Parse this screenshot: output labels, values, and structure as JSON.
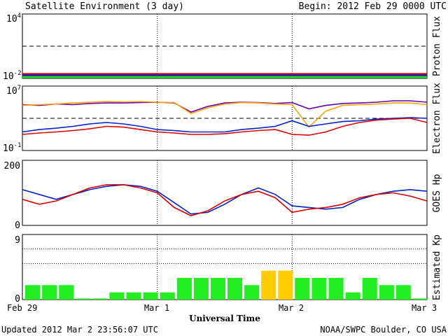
{
  "header": {
    "title": "Satellite Environment (3 day)",
    "begin": "Begin:  2012 Feb 29 0000 UTC"
  },
  "footer": {
    "updated": "Updated 2012 Mar  2 23:56:07 UTC",
    "credit": "NOAA/SWPC Boulder, CO USA"
  },
  "xaxis": {
    "title": "Universal Time",
    "ticks": [
      "Feb 29",
      "Mar 1",
      "Mar 2",
      "Mar 3"
    ],
    "range_hours": [
      0,
      72
    ]
  },
  "colors": {
    "red": "#dd0000",
    "blue": "#0022cc",
    "green": "#22dd22",
    "purple": "#6600aa",
    "orange": "#ffa500",
    "kp_green": "#22ee22",
    "kp_yellow": "#ffcc00"
  },
  "chart_data": [
    {
      "type": "line",
      "title": "",
      "ylabel": "Proton Flux",
      "yscale": "log",
      "ylim": [
        0.01,
        10000
      ],
      "yticks": [
        "10",
        "10"
      ],
      "ytick_exp": [
        "4",
        "-2"
      ],
      "threshold": 10,
      "x": [
        0,
        12,
        24,
        36,
        48,
        60,
        72
      ],
      "series": [
        {
          "color": "red",
          "values": [
            0.025,
            0.025,
            0.025,
            0.025,
            0.025,
            0.025,
            0.025
          ]
        },
        {
          "color": "blue",
          "values": [
            0.018,
            0.018,
            0.018,
            0.018,
            0.018,
            0.018,
            0.018
          ]
        },
        {
          "color": "green",
          "values": [
            0.013,
            0.013,
            0.013,
            0.013,
            0.013,
            0.013,
            0.013
          ]
        }
      ]
    },
    {
      "type": "line",
      "title": "",
      "ylabel": "Electron Flux",
      "yscale": "log",
      "ylim": [
        0.1,
        10000000
      ],
      "yticks": [
        "10",
        "10"
      ],
      "ytick_exp": [
        "7",
        "-1"
      ],
      "threshold": 1000,
      "x": [
        0,
        3,
        6,
        9,
        12,
        15,
        18,
        21,
        24,
        27,
        30,
        33,
        36,
        39,
        42,
        45,
        48,
        51,
        54,
        57,
        60,
        63,
        66,
        69,
        72
      ],
      "series": [
        {
          "color": "purple",
          "values": [
            50000,
            40000,
            60000,
            50000,
            70000,
            80000,
            80000,
            90000,
            100000,
            80000,
            6000,
            30000,
            80000,
            100000,
            90000,
            70000,
            90000,
            15000,
            40000,
            70000,
            80000,
            100000,
            150000,
            150000,
            100000
          ]
        },
        {
          "color": "orange",
          "values": [
            40000,
            50000,
            60000,
            80000,
            100000,
            120000,
            110000,
            120000,
            100000,
            90000,
            4000,
            20000,
            60000,
            90000,
            80000,
            60000,
            50000,
            80,
            8000,
            40000,
            50000,
            60000,
            80000,
            80000,
            50000
          ]
        },
        {
          "color": "blue",
          "values": [
            20,
            40,
            60,
            100,
            200,
            300,
            200,
            100,
            40,
            30,
            20,
            20,
            20,
            40,
            60,
            100,
            500,
            100,
            200,
            400,
            500,
            800,
            1000,
            1200,
            1000
          ]
        },
        {
          "color": "red",
          "values": [
            10,
            15,
            20,
            30,
            50,
            100,
            80,
            40,
            20,
            15,
            10,
            10,
            12,
            20,
            30,
            40,
            10,
            8,
            20,
            100,
            300,
            600,
            800,
            1000,
            300
          ]
        }
      ]
    },
    {
      "type": "line",
      "title": "",
      "ylabel": "GOES Hp",
      "ylim": [
        0,
        200
      ],
      "yticks": [
        "200",
        "0"
      ],
      "x": [
        0,
        3,
        6,
        9,
        12,
        15,
        18,
        21,
        24,
        27,
        30,
        33,
        36,
        39,
        42,
        45,
        48,
        51,
        54,
        57,
        60,
        63,
        66,
        69,
        72
      ],
      "series": [
        {
          "color": "blue",
          "values": [
            110,
            95,
            80,
            95,
            110,
            120,
            125,
            120,
            105,
            70,
            35,
            40,
            65,
            95,
            115,
            95,
            60,
            55,
            50,
            55,
            80,
            95,
            105,
            110,
            105
          ]
        },
        {
          "color": "red",
          "values": [
            80,
            65,
            75,
            95,
            115,
            125,
            125,
            115,
            100,
            55,
            30,
            45,
            75,
            95,
            105,
            85,
            40,
            50,
            55,
            65,
            85,
            95,
            100,
            90,
            75
          ]
        }
      ]
    },
    {
      "type": "bar",
      "title": "",
      "ylabel": "Estimated Kp",
      "ylim": [
        0,
        9
      ],
      "yticks": [
        "9",
        "0"
      ],
      "values": [
        2,
        2,
        2,
        0,
        0,
        1,
        1,
        1,
        1,
        3,
        3,
        3,
        3,
        2,
        4,
        4,
        3,
        3,
        3,
        1,
        3,
        2,
        2,
        0
      ],
      "colors": [
        "kp_green",
        "kp_green",
        "kp_green",
        "kp_green",
        "kp_green",
        "kp_green",
        "kp_green",
        "kp_green",
        "kp_green",
        "kp_green",
        "kp_green",
        "kp_green",
        "kp_green",
        "kp_green",
        "kp_yellow",
        "kp_yellow",
        "kp_green",
        "kp_green",
        "kp_green",
        "kp_green",
        "kp_green",
        "kp_green",
        "kp_green",
        "kp_green"
      ]
    }
  ]
}
